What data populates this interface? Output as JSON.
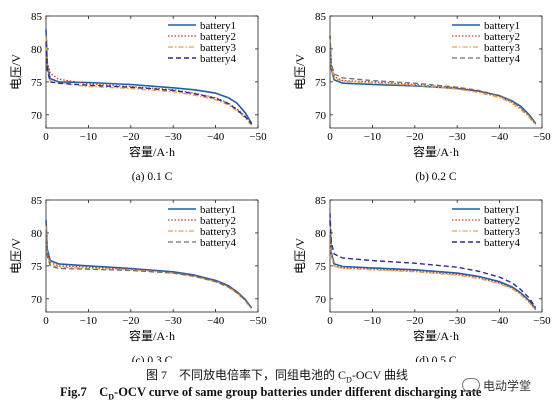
{
  "figure": {
    "caption_cn": "图 7　不同放电倍率下，同组电池的 C",
    "caption_cn_sub": "D",
    "caption_cn_tail": "-OCV 曲线",
    "caption_en_prefix": "Fig.7",
    "caption_en_c": "C",
    "caption_en_sub": "D",
    "caption_en_tail": "-OCV curve of same group batteries under different discharging rate",
    "watermark": "电动学堂"
  },
  "colors": {
    "battery1": "#1f5fa8",
    "battery2": "#c0392b",
    "battery3": "#e8a33a",
    "battery4_02": "#707070",
    "battery4_05": "#2b2e8c"
  },
  "chart_data": [
    {
      "type": "line",
      "subtitle": "(a) 0.1 C",
      "xlabel": "容量/A·h",
      "ylabel": "电压/V",
      "xlim": [
        0,
        -50
      ],
      "ylim": [
        68,
        85
      ],
      "xticks": [
        "0",
        "−10",
        "−20",
        "−30",
        "−40",
        "−50"
      ],
      "yticks": [
        "70",
        "75",
        "80",
        "85"
      ],
      "legend_position": "top-right",
      "series": [
        {
          "name": "battery1",
          "x": [
            0,
            -0.3,
            -1,
            -3,
            -10,
            -20,
            -30,
            -35,
            -40,
            -43,
            -45,
            -47,
            -48.5
          ],
          "y": [
            83,
            77.5,
            75.5,
            75.0,
            74.9,
            74.6,
            74.1,
            73.8,
            73.3,
            72.6,
            71.8,
            70.3,
            68.7
          ]
        },
        {
          "name": "battery2",
          "x": [
            0,
            -0.3,
            -1,
            -3,
            -10,
            -20,
            -30,
            -35,
            -40,
            -43,
            -45,
            -47,
            -48.5
          ],
          "y": [
            82,
            78,
            76.3,
            75.4,
            74.7,
            74.3,
            73.8,
            73.3,
            72.6,
            71.8,
            70.9,
            69.8,
            68.6
          ]
        },
        {
          "name": "battery3",
          "x": [
            0,
            -0.3,
            -1,
            -3,
            -10,
            -20,
            -30,
            -35,
            -40,
            -43,
            -45,
            -47,
            -48.5
          ],
          "y": [
            82,
            77,
            75.2,
            74.8,
            74.3,
            74.0,
            73.5,
            73.0,
            72.3,
            71.5,
            70.6,
            69.5,
            68.4
          ]
        },
        {
          "name": "battery4",
          "x": [
            0,
            -0.3,
            -1,
            -3,
            -10,
            -20,
            -30,
            -35,
            -40,
            -43,
            -45,
            -47,
            -48.5
          ],
          "y": [
            81,
            76.8,
            75.0,
            74.8,
            74.5,
            74.2,
            73.7,
            73.2,
            72.5,
            71.7,
            70.8,
            69.7,
            68.6
          ]
        }
      ]
    },
    {
      "type": "line",
      "subtitle": "(b) 0.2 C",
      "xlabel": "容量/A·h",
      "ylabel": "电压/V",
      "xlim": [
        0,
        -50
      ],
      "ylim": [
        68,
        85
      ],
      "xticks": [
        "0",
        "−10",
        "−20",
        "−30",
        "−40",
        "−50"
      ],
      "yticks": [
        "70",
        "75",
        "80",
        "85"
      ],
      "legend_position": "top-right",
      "series": [
        {
          "name": "battery1",
          "x": [
            0,
            -0.3,
            -1,
            -3,
            -10,
            -20,
            -30,
            -35,
            -40,
            -43,
            -45,
            -47,
            -48.5
          ],
          "y": [
            82,
            77,
            75.3,
            74.8,
            74.6,
            74.4,
            74.0,
            73.6,
            72.9,
            72.1,
            71.3,
            70.0,
            68.7
          ]
        },
        {
          "name": "battery2",
          "x": [
            0,
            -0.3,
            -1,
            -3,
            -10,
            -20,
            -30,
            -35,
            -40,
            -43,
            -45,
            -47,
            -48.5
          ],
          "y": [
            82,
            77.5,
            75.8,
            75.2,
            75.0,
            74.6,
            74.1,
            73.6,
            72.8,
            71.9,
            71.0,
            69.8,
            68.6
          ]
        },
        {
          "name": "battery3",
          "x": [
            0,
            -0.3,
            -1,
            -3,
            -10,
            -20,
            -30,
            -35,
            -40,
            -43,
            -45,
            -47,
            -48.5
          ],
          "y": [
            81.5,
            77.2,
            75.6,
            75.1,
            74.8,
            74.5,
            73.9,
            73.4,
            72.6,
            71.7,
            70.8,
            69.6,
            68.4
          ]
        },
        {
          "name": "battery4",
          "x": [
            0,
            -0.3,
            -1,
            -3,
            -10,
            -20,
            -30,
            -35,
            -40,
            -43,
            -45,
            -47,
            -48.5
          ],
          "y": [
            81,
            77.8,
            76.2,
            75.6,
            75.2,
            74.8,
            74.2,
            73.7,
            72.9,
            72.0,
            71.1,
            69.9,
            68.7
          ]
        }
      ]
    },
    {
      "type": "line",
      "subtitle": "(c) 0.3 C",
      "xlabel": "容量/A·h",
      "ylabel": "电压/V",
      "xlim": [
        0,
        -50
      ],
      "ylim": [
        68,
        85
      ],
      "xticks": [
        "0",
        "−10",
        "−20",
        "−30",
        "−40",
        "−50"
      ],
      "yticks": [
        "70",
        "75",
        "80",
        "85"
      ],
      "legend_position": "top-right",
      "series": [
        {
          "name": "battery1",
          "x": [
            0,
            -0.3,
            -1,
            -3,
            -10,
            -20,
            -30,
            -35,
            -40,
            -43,
            -45,
            -47,
            -48.5
          ],
          "y": [
            82,
            77.5,
            75.8,
            75.3,
            75.0,
            74.6,
            74.1,
            73.6,
            72.8,
            72.0,
            71.1,
            69.9,
            68.6
          ]
        },
        {
          "name": "battery2",
          "x": [
            0,
            -0.3,
            -1,
            -3,
            -10,
            -20,
            -30,
            -35,
            -40,
            -43,
            -45,
            -47,
            -48.5
          ],
          "y": [
            81.5,
            77,
            75.5,
            75.0,
            74.8,
            74.5,
            74.0,
            73.5,
            72.7,
            71.9,
            71.0,
            69.8,
            68.5
          ]
        },
        {
          "name": "battery3",
          "x": [
            0,
            -0.3,
            -1,
            -3,
            -10,
            -20,
            -30,
            -35,
            -40,
            -43,
            -45,
            -47,
            -48.5
          ],
          "y": [
            81,
            76.8,
            75.2,
            74.8,
            74.6,
            74.4,
            73.9,
            73.4,
            72.6,
            71.8,
            70.9,
            69.7,
            68.4
          ]
        },
        {
          "name": "battery4",
          "x": [
            0,
            -0.3,
            -1,
            -3,
            -10,
            -20,
            -30,
            -35,
            -40,
            -43,
            -45,
            -47,
            -48.5
          ],
          "y": [
            80.5,
            76.5,
            75.0,
            74.6,
            74.5,
            74.3,
            73.9,
            73.4,
            72.6,
            71.8,
            70.9,
            69.8,
            68.6
          ]
        }
      ]
    },
    {
      "type": "line",
      "subtitle": "(d) 0.5 C",
      "xlabel": "容量/A·h",
      "ylabel": "电压/V",
      "xlim": [
        0,
        -50
      ],
      "ylim": [
        68,
        85
      ],
      "xticks": [
        "0",
        "−10",
        "−20",
        "−30",
        "−40",
        "−50"
      ],
      "yticks": [
        "70",
        "75",
        "80",
        "85"
      ],
      "legend_position": "top-right",
      "series": [
        {
          "name": "battery1",
          "x": [
            0,
            -0.3,
            -1,
            -3,
            -10,
            -20,
            -30,
            -35,
            -40,
            -43,
            -45,
            -47,
            -48.5
          ],
          "y": [
            82,
            77,
            75.3,
            74.9,
            74.7,
            74.4,
            73.9,
            73.4,
            72.6,
            71.8,
            70.9,
            69.7,
            68.5
          ]
        },
        {
          "name": "battery2",
          "x": [
            0,
            -0.3,
            -1,
            -3,
            -10,
            -20,
            -30,
            -35,
            -40,
            -43,
            -45,
            -47,
            -48.5
          ],
          "y": [
            81.5,
            76.8,
            75.0,
            74.7,
            74.5,
            74.2,
            73.7,
            73.2,
            72.4,
            71.6,
            70.7,
            69.5,
            68.3
          ]
        },
        {
          "name": "battery3",
          "x": [
            0,
            -0.3,
            -1,
            -3,
            -10,
            -20,
            -30,
            -35,
            -40,
            -43,
            -45,
            -47,
            -48.5
          ],
          "y": [
            81,
            76.6,
            74.9,
            74.6,
            74.4,
            74.1,
            73.6,
            73.1,
            72.3,
            71.5,
            70.6,
            69.4,
            68.3
          ]
        },
        {
          "name": "battery4",
          "x": [
            0,
            -0.3,
            -1,
            -3,
            -10,
            -20,
            -30,
            -35,
            -40,
            -43,
            -45,
            -47,
            -48.5
          ],
          "y": [
            83,
            78.5,
            76.8,
            76.2,
            75.8,
            75.4,
            74.8,
            74.2,
            73.3,
            72.4,
            71.4,
            70.1,
            68.7
          ]
        }
      ]
    }
  ]
}
